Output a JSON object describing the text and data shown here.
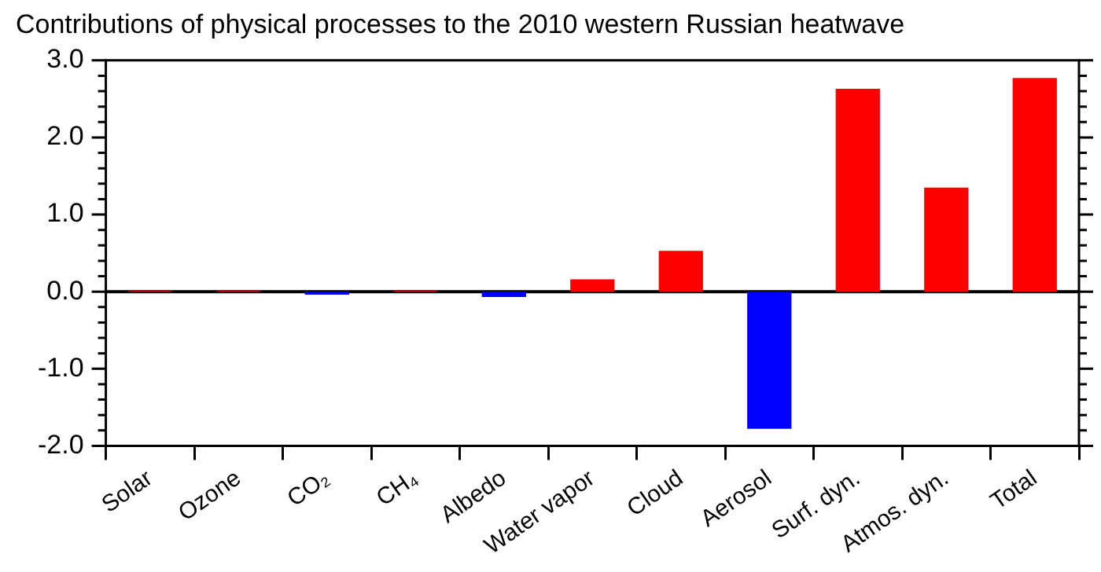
{
  "chart_data": {
    "type": "bar",
    "title": "Contributions of physical processes to the 2010 western Russian heatwave",
    "categories": [
      "Solar",
      "Ozone",
      "CO₂",
      "CH₄",
      "Albedo",
      "Water vapor",
      "Cloud",
      "Aerosol",
      "Surf. dyn.",
      "Atmos. dyn.",
      "Total"
    ],
    "values": [
      0.01,
      0.01,
      -0.04,
      0.01,
      -0.07,
      0.16,
      0.53,
      -1.78,
      2.63,
      1.35,
      2.77
    ],
    "colors": [
      "#ff0000",
      "#ff0000",
      "#0000ff",
      "#ff0000",
      "#0000ff",
      "#ff0000",
      "#ff0000",
      "#0000ff",
      "#ff0000",
      "#ff0000",
      "#ff0000"
    ],
    "ylim": [
      -2,
      3
    ],
    "yticks": [
      {
        "value": -2,
        "label": "-2.0"
      },
      {
        "value": -1.8,
        "label": null
      },
      {
        "value": -1.6,
        "label": null
      },
      {
        "value": -1.4,
        "label": null
      },
      {
        "value": -1.2,
        "label": null
      },
      {
        "value": -1,
        "label": "-1.0"
      },
      {
        "value": -0.8,
        "label": null
      },
      {
        "value": -0.6,
        "label": null
      },
      {
        "value": -0.4,
        "label": null
      },
      {
        "value": -0.2,
        "label": null
      },
      {
        "value": 0,
        "label": "0.0"
      },
      {
        "value": 0.2,
        "label": null
      },
      {
        "value": 0.4,
        "label": null
      },
      {
        "value": 0.6,
        "label": null
      },
      {
        "value": 0.8,
        "label": null
      },
      {
        "value": 1,
        "label": "1.0"
      },
      {
        "value": 1.2,
        "label": null
      },
      {
        "value": 1.4,
        "label": null
      },
      {
        "value": 1.6,
        "label": null
      },
      {
        "value": 1.8,
        "label": null
      },
      {
        "value": 2,
        "label": "2.0"
      },
      {
        "value": 2.2,
        "label": null
      },
      {
        "value": 2.4,
        "label": null
      },
      {
        "value": 2.6,
        "label": null
      },
      {
        "value": 2.8,
        "label": null
      },
      {
        "value": 3,
        "label": "3.0"
      }
    ],
    "ref_lines": [
      {
        "axis": "y",
        "value": 0,
        "color": "#000000"
      }
    ],
    "grid": false,
    "legend": false
  }
}
